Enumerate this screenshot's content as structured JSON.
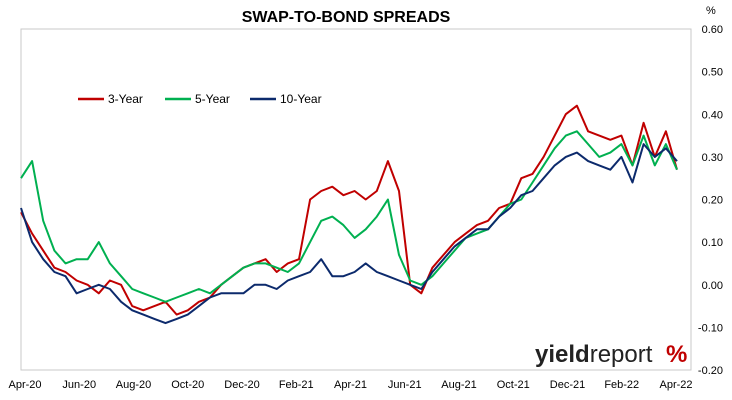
{
  "chart_data": {
    "type": "line",
    "title": "SWAP-TO-BOND SPREADS",
    "y_unit_label": "%",
    "ylim": [
      -0.2,
      0.6
    ],
    "y_ticks": [
      -0.2,
      -0.1,
      0.0,
      0.1,
      0.2,
      0.3,
      0.4,
      0.5,
      0.6
    ],
    "y_tick_labels": [
      "-0.20",
      "-0.10",
      "0.00",
      "0.10",
      "0.20",
      "0.30",
      "0.40",
      "0.50",
      "0.60"
    ],
    "x_tick_labels": [
      "Apr-20",
      "Jun-20",
      "Aug-20",
      "Oct-20",
      "Dec-20",
      "Feb-21",
      "Apr-21",
      "Jun-21",
      "Aug-21",
      "Oct-21",
      "Dec-21",
      "Feb-22",
      "Apr-22"
    ],
    "legend_position": "top-left",
    "grid": false,
    "series": [
      {
        "name": "3-Year",
        "color": "#c00000",
        "values": [
          0.17,
          0.12,
          0.08,
          0.04,
          0.03,
          0.01,
          0.0,
          -0.02,
          0.01,
          0.0,
          -0.05,
          -0.06,
          -0.05,
          -0.04,
          -0.07,
          -0.06,
          -0.04,
          -0.03,
          0.0,
          0.02,
          0.04,
          0.05,
          0.06,
          0.03,
          0.05,
          0.06,
          0.2,
          0.22,
          0.23,
          0.21,
          0.22,
          0.2,
          0.22,
          0.29,
          0.22,
          0.0,
          -0.02,
          0.04,
          0.07,
          0.1,
          0.12,
          0.14,
          0.15,
          0.18,
          0.19,
          0.25,
          0.26,
          0.3,
          0.35,
          0.4,
          0.42,
          0.36,
          0.35,
          0.34,
          0.35,
          0.28,
          0.38,
          0.3,
          0.36,
          0.27
        ]
      },
      {
        "name": "5-Year",
        "color": "#00b050",
        "values": [
          0.25,
          0.29,
          0.15,
          0.08,
          0.05,
          0.06,
          0.06,
          0.1,
          0.05,
          0.02,
          -0.01,
          -0.02,
          -0.03,
          -0.04,
          -0.03,
          -0.02,
          -0.01,
          -0.02,
          0.0,
          0.02,
          0.04,
          0.05,
          0.05,
          0.04,
          0.03,
          0.05,
          0.1,
          0.15,
          0.16,
          0.14,
          0.11,
          0.13,
          0.16,
          0.2,
          0.07,
          0.01,
          0.0,
          0.02,
          0.05,
          0.08,
          0.11,
          0.12,
          0.13,
          0.16,
          0.19,
          0.2,
          0.24,
          0.28,
          0.32,
          0.35,
          0.36,
          0.33,
          0.3,
          0.31,
          0.33,
          0.28,
          0.35,
          0.28,
          0.33,
          0.27
        ]
      },
      {
        "name": "10-Year",
        "color": "#0c2a6c",
        "values": [
          0.18,
          0.1,
          0.06,
          0.03,
          0.02,
          -0.02,
          -0.01,
          0.0,
          -0.01,
          -0.04,
          -0.06,
          -0.07,
          -0.08,
          -0.09,
          -0.08,
          -0.07,
          -0.05,
          -0.03,
          -0.02,
          -0.02,
          -0.02,
          0.0,
          0.0,
          -0.01,
          0.01,
          0.02,
          0.03,
          0.06,
          0.02,
          0.02,
          0.03,
          0.05,
          0.03,
          0.02,
          0.01,
          0.0,
          -0.01,
          0.03,
          0.06,
          0.09,
          0.11,
          0.13,
          0.13,
          0.16,
          0.18,
          0.21,
          0.22,
          0.25,
          0.28,
          0.3,
          0.31,
          0.29,
          0.28,
          0.27,
          0.3,
          0.24,
          0.33,
          0.3,
          0.32,
          0.29
        ]
      }
    ]
  },
  "brand": {
    "name_bold": "yield",
    "name_light": "report",
    "symbol": "%"
  }
}
